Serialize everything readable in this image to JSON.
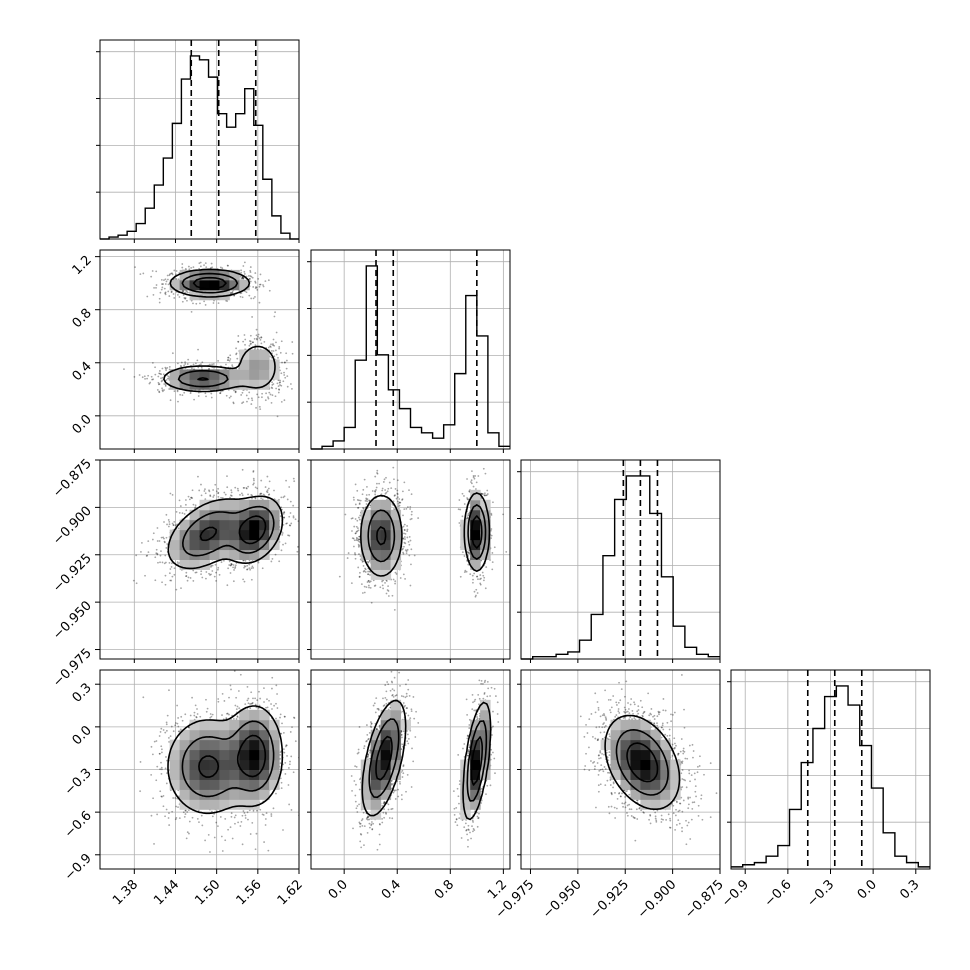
{
  "chart_data": {
    "type": "corner",
    "dimensions": 4,
    "grid": true,
    "colors": {
      "line": "#000000",
      "grid": "#b0b0b0",
      "density_dark": "#000000",
      "density_light": "#ffffff"
    },
    "params": [
      {
        "id": "p1",
        "range": [
          1.33,
          1.62
        ],
        "ticks": [
          "1.38",
          "1.44",
          "1.50",
          "1.56",
          "1.62"
        ],
        "tick_values": [
          1.38,
          1.44,
          1.5,
          1.56,
          1.62
        ],
        "quantiles": [
          1.463,
          1.503,
          1.557
        ]
      },
      {
        "id": "p2",
        "range": [
          -0.25,
          1.25
        ],
        "ticks": [
          "0.0",
          "0.4",
          "0.8",
          "1.2"
        ],
        "tick_values": [
          0.0,
          0.4,
          0.8,
          1.2
        ],
        "quantiles": [
          0.24,
          0.37,
          1.0
        ]
      },
      {
        "id": "p3",
        "range": [
          -0.98,
          -0.875
        ],
        "ticks": [
          "−0.975",
          "−0.950",
          "−0.925",
          "−0.900",
          "−0.875"
        ],
        "tick_values": [
          -0.975,
          -0.95,
          -0.925,
          -0.9,
          -0.875
        ],
        "ticks_y": [
          "−0.875",
          "−0.900",
          "−0.925",
          "−0.950",
          "−0.975"
        ],
        "tick_values_y": [
          -0.875,
          -0.9,
          -0.925,
          -0.95,
          -0.975
        ],
        "quantiles": [
          -0.926,
          -0.917,
          -0.908
        ]
      },
      {
        "id": "p4",
        "range": [
          -1.0,
          0.4
        ],
        "ticks": [
          "−0.9",
          "−0.6",
          "−0.3",
          "0.0",
          "0.3"
        ],
        "tick_values": [
          -0.9,
          -0.6,
          -0.3,
          0.0,
          0.3
        ],
        "quantiles": [
          -0.46,
          -0.27,
          -0.08
        ]
      }
    ],
    "histograms": [
      {
        "param": "p1",
        "counts": [
          0,
          1,
          2,
          4,
          8,
          16,
          28,
          42,
          60,
          83,
          95,
          93,
          84,
          65,
          58,
          65,
          78,
          59,
          31,
          12,
          3,
          0
        ]
      },
      {
        "param": "p2",
        "counts": [
          0,
          1,
          3,
          8,
          33,
          68,
          35,
          22,
          15,
          8,
          6,
          4,
          9,
          28,
          57,
          42,
          6,
          1
        ]
      },
      {
        "param": "p3",
        "counts": [
          0,
          1,
          1,
          2,
          3,
          8,
          19,
          44,
          68,
          78,
          78,
          62,
          35,
          14,
          5,
          2,
          1
        ]
      },
      {
        "param": "p4",
        "counts": [
          1,
          2,
          3,
          6,
          11,
          28,
          50,
          66,
          81,
          86,
          77,
          58,
          38,
          17,
          6,
          3,
          1
        ]
      }
    ],
    "pair_modes": [
      {
        "x": "p1",
        "y": "p2",
        "modes": [
          {
            "mx": 1.49,
            "my": 1.0,
            "sx": 0.028,
            "sy": 0.05,
            "rho": 0.0,
            "w": 0.45
          },
          {
            "mx": 1.48,
            "my": 0.28,
            "sx": 0.03,
            "sy": 0.05,
            "rho": 0.0,
            "w": 0.35
          },
          {
            "mx": 1.56,
            "my": 0.37,
            "sx": 0.018,
            "sy": 0.11,
            "rho": 0.0,
            "w": 0.2
          }
        ]
      },
      {
        "x": "p1",
        "y": "p3",
        "modes": [
          {
            "mx": 1.487,
            "my": -0.914,
            "sx": 0.03,
            "sy": 0.0095,
            "rho": 0.45,
            "w": 0.55
          },
          {
            "mx": 1.555,
            "my": -0.912,
            "sx": 0.02,
            "sy": 0.0085,
            "rho": 0.3,
            "w": 0.45
          }
        ]
      },
      {
        "x": "p2",
        "y": "p3",
        "modes": [
          {
            "mx": 0.28,
            "my": -0.915,
            "sx": 0.08,
            "sy": 0.011,
            "rho": 0.0,
            "w": 0.6
          },
          {
            "mx": 1.0,
            "my": -0.913,
            "sx": 0.045,
            "sy": 0.01,
            "rho": 0.0,
            "w": 0.4
          }
        ]
      },
      {
        "x": "p1",
        "y": "p4",
        "modes": [
          {
            "mx": 1.487,
            "my": -0.28,
            "sx": 0.03,
            "sy": 0.17,
            "rho": 0.0,
            "w": 0.55
          },
          {
            "mx": 1.555,
            "my": -0.2,
            "sx": 0.02,
            "sy": 0.17,
            "rho": 0.0,
            "w": 0.45
          }
        ]
      },
      {
        "x": "p2",
        "y": "p4",
        "modes": [
          {
            "mx": 0.3,
            "my": -0.22,
            "sx": 0.08,
            "sy": 0.2,
            "rho": 0.55,
            "w": 0.6
          },
          {
            "mx": 1.0,
            "my": -0.24,
            "sx": 0.05,
            "sy": 0.2,
            "rho": 0.55,
            "w": 0.4
          }
        ]
      },
      {
        "x": "p3",
        "y": "p4",
        "modes": [
          {
            "mx": -0.916,
            "my": -0.25,
            "sx": 0.0095,
            "sy": 0.16,
            "rho": -0.35,
            "w": 1.0
          }
        ]
      }
    ]
  }
}
